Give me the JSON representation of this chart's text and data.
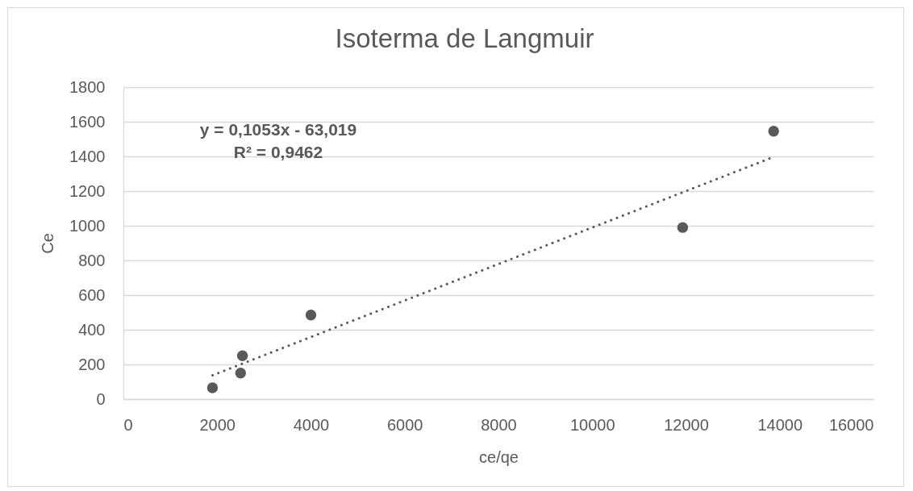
{
  "chart_data": {
    "type": "scatter",
    "title": "Isoterma de Langmuir",
    "xlabel": "ce/qe",
    "ylabel": "Ce",
    "xlim": [
      0,
      16000
    ],
    "xticks": [
      0,
      2000,
      4000,
      6000,
      8000,
      10000,
      12000,
      14000,
      16000
    ],
    "ylim": [
      0,
      1800
    ],
    "yticks": [
      0,
      200,
      400,
      600,
      800,
      1000,
      1200,
      1400,
      1600,
      1800
    ],
    "grid": "y",
    "marker": "circle",
    "annotations": [
      "y = 0,1053x - 63,019",
      "R² = 0,9462"
    ],
    "series": [
      {
        "color": "#595959",
        "x": [
          1900,
          2500,
          2540,
          4000,
          11930,
          13870
        ],
        "values": [
          65,
          150,
          250,
          485,
          990,
          1545
        ]
      },
      {
        "type": "line",
        "color": "#595959",
        "line_style": "dotted",
        "marker": "none",
        "x": [
          1900,
          13870
        ],
        "values": [
          137,
          1397
        ]
      }
    ]
  }
}
